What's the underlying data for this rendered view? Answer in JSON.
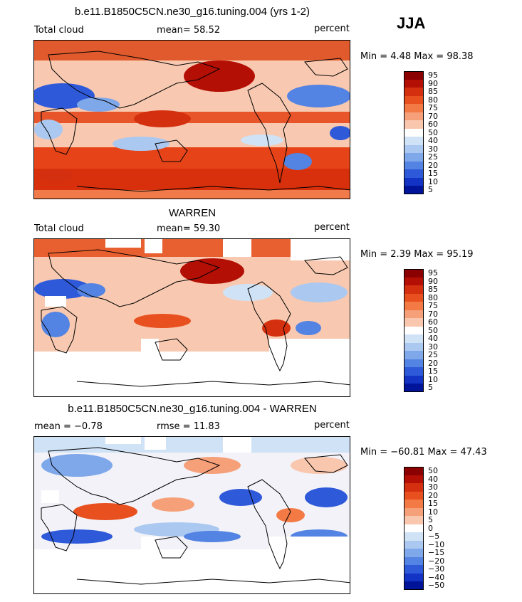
{
  "season": "JJA",
  "panels": [
    {
      "title": "b.e11.B1850C5CN.ne30_g16.tuning.004 (yrs 1-2)",
      "left_label": "Total cloud",
      "center_label": "mean=  58.52",
      "right_label": "percent",
      "minmax": "Min =    4.48  Max =   98.38",
      "legend_labels": [
        "95",
        "90",
        "85",
        "80",
        "75",
        "70",
        "60",
        "50",
        "40",
        "30",
        "25",
        "20",
        "15",
        "10",
        "5"
      ],
      "legend_colors": [
        "#8b0000",
        "#b40f05",
        "#d4300f",
        "#e8501f",
        "#f37a44",
        "#f6a07a",
        "#f9c7ae",
        "#ffffff",
        "#cfe2f6",
        "#aac8f0",
        "#7fa8ea",
        "#5383e3",
        "#2e59d9",
        "#1233c4",
        "#00149a"
      ]
    },
    {
      "title": "WARREN",
      "left_label": "Total cloud",
      "center_label": "mean=  59.30",
      "right_label": "percent",
      "minmax": "Min =    2.39  Max =   95.19",
      "legend_labels": [
        "95",
        "90",
        "85",
        "80",
        "75",
        "70",
        "60",
        "50",
        "40",
        "30",
        "25",
        "20",
        "15",
        "10",
        "5"
      ],
      "legend_colors": [
        "#8b0000",
        "#b40f05",
        "#d4300f",
        "#e8501f",
        "#f37a44",
        "#f6a07a",
        "#f9c7ae",
        "#ffffff",
        "#cfe2f6",
        "#aac8f0",
        "#7fa8ea",
        "#5383e3",
        "#2e59d9",
        "#1233c4",
        "#00149a"
      ]
    },
    {
      "title": "b.e11.B1850C5CN.ne30_g16.tuning.004 - WARREN",
      "left_label": "mean =   −0.78",
      "center_label": "rmse =   11.83",
      "right_label": "percent",
      "minmax": "Min = −60.81  Max =   47.43",
      "legend_labels": [
        "50",
        "40",
        "30",
        "20",
        "15",
        "10",
        "5",
        "0",
        "−5",
        "−10",
        "−15",
        "−20",
        "−30",
        "−40",
        "−50"
      ],
      "legend_colors": [
        "#8b0000",
        "#b40f05",
        "#d4300f",
        "#e8501f",
        "#f37a44",
        "#f6a07a",
        "#f9c7ae",
        "#ffffff",
        "#cfe2f6",
        "#aac8f0",
        "#7fa8ea",
        "#5383e3",
        "#2e59d9",
        "#1233c4",
        "#00149a"
      ]
    }
  ]
}
